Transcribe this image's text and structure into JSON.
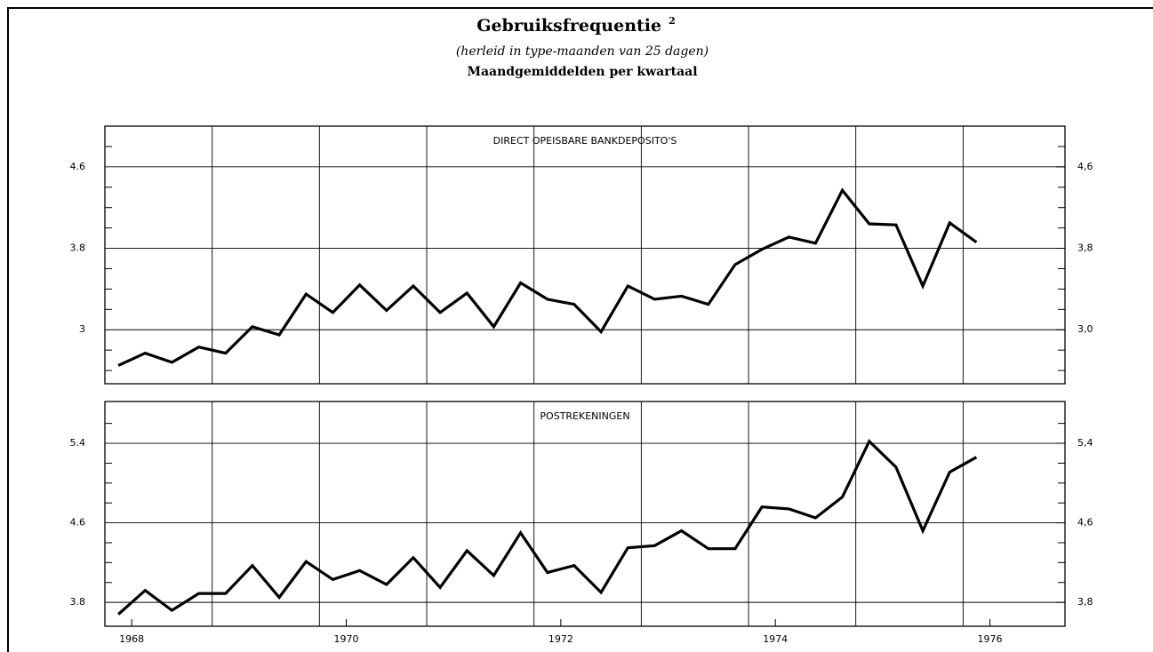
{
  "header": {
    "title": "Gebruiksfrequentie",
    "footnote_mark": "2",
    "subtitle": "(herleid in type-maanden van 25 dagen)",
    "note": "Maandgemiddelden per kwartaal"
  },
  "chart_data": [
    {
      "type": "line",
      "panel_label": "DIRECT OPEISBARE BANKDEPOSITO'S",
      "color": "#000000",
      "x": [
        1967.875,
        1968.125,
        1968.375,
        1968.625,
        1968.875,
        1969.125,
        1969.375,
        1969.625,
        1969.875,
        1970.125,
        1970.375,
        1970.625,
        1970.875,
        1971.125,
        1971.375,
        1971.625,
        1971.875,
        1972.125,
        1972.375,
        1972.625,
        1972.875,
        1973.125,
        1973.375,
        1973.625,
        1973.875,
        1974.125,
        1974.375,
        1974.625,
        1974.875,
        1975.125,
        1975.375,
        1975.625,
        1975.875
      ],
      "values": [
        2.65,
        2.77,
        2.68,
        2.83,
        2.77,
        3.03,
        2.95,
        3.35,
        3.17,
        3.44,
        3.19,
        3.43,
        3.17,
        3.36,
        3.03,
        3.46,
        3.3,
        3.25,
        2.98,
        3.43,
        3.3,
        3.33,
        3.25,
        3.64,
        3.79,
        3.91,
        3.85,
        4.37,
        4.04,
        4.03,
        3.43,
        4.05,
        3.86
      ],
      "xlim": [
        1967.75,
        1976.7
      ],
      "xgrid": [
        1968.75,
        1969.75,
        1970.75,
        1971.75,
        1972.75,
        1973.75,
        1974.75,
        1975.75
      ],
      "ylim": [
        2.47,
        5.0
      ],
      "yticks": [
        3.0,
        3.8,
        4.6
      ],
      "yminorticks": [
        2.6,
        2.8,
        3.2,
        3.4,
        3.6,
        4.0,
        4.2,
        4.4,
        4.8
      ],
      "y2lim": [
        2.47,
        5.0
      ],
      "y2ticks": [
        {
          "value": 3.0,
          "label": "3,0"
        },
        {
          "value": 3.8,
          "label": "3,8"
        },
        {
          "value": 4.6,
          "label": "4,6"
        }
      ],
      "grid": true
    },
    {
      "type": "line",
      "panel_label": "POSTREKENINGEN",
      "color": "#000000",
      "x": [
        1967.875,
        1968.125,
        1968.375,
        1968.625,
        1968.875,
        1969.125,
        1969.375,
        1969.625,
        1969.875,
        1970.125,
        1970.375,
        1970.625,
        1970.875,
        1971.125,
        1971.375,
        1971.625,
        1971.875,
        1972.125,
        1972.375,
        1972.625,
        1972.875,
        1973.125,
        1973.375,
        1973.625,
        1973.875,
        1974.125,
        1974.375,
        1974.625,
        1974.875,
        1975.125,
        1975.375,
        1975.625,
        1975.875
      ],
      "values": [
        3.68,
        3.92,
        3.72,
        3.89,
        3.89,
        4.17,
        3.85,
        4.21,
        4.03,
        4.12,
        3.98,
        4.25,
        3.95,
        4.32,
        4.07,
        4.5,
        4.1,
        4.17,
        3.9,
        4.35,
        4.37,
        4.52,
        4.34,
        4.34,
        4.76,
        4.74,
        4.65,
        4.86,
        5.42,
        5.16,
        4.52,
        5.11,
        5.26
      ],
      "xlim": [
        1967.75,
        1976.7
      ],
      "xgrid": [
        1968.75,
        1969.75,
        1970.75,
        1971.75,
        1972.75,
        1973.75,
        1974.75,
        1975.75
      ],
      "xticks": [
        1968,
        1970,
        1972,
        1974,
        1976
      ],
      "ylim": [
        3.56,
        5.82
      ],
      "yticks": [
        3.8,
        4.6,
        5.4
      ],
      "yminorticks": [
        4.0,
        4.2,
        4.4,
        4.8,
        5.0,
        5.2,
        5.6
      ],
      "y2lim": [
        3.56,
        5.82
      ],
      "y2ticks": [
        {
          "value": 3.8,
          "label": "3,8"
        },
        {
          "value": 4.6,
          "label": "4,6"
        },
        {
          "value": 5.4,
          "label": "5,4"
        }
      ],
      "grid": true
    }
  ]
}
